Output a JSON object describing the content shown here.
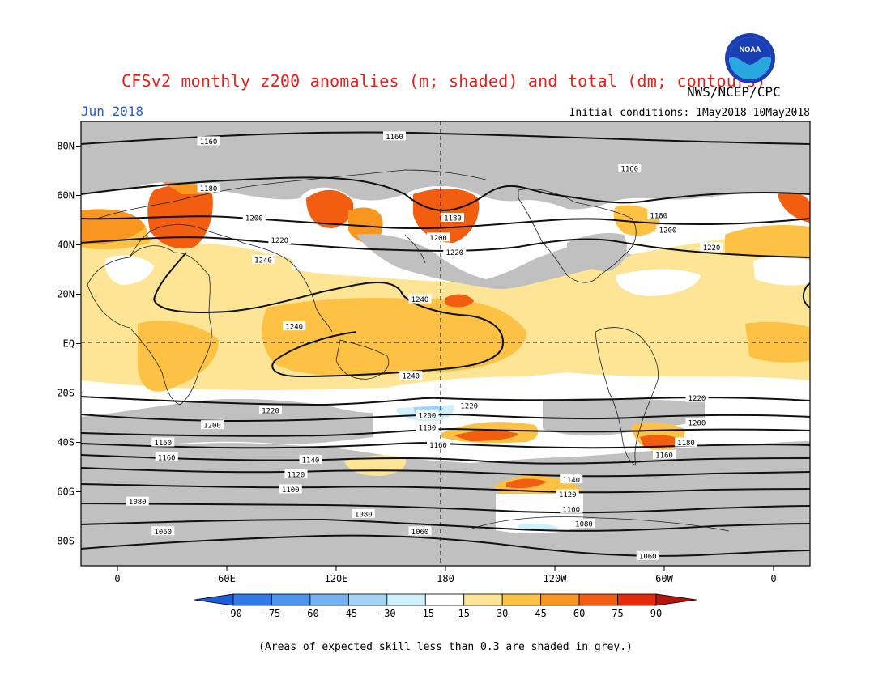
{
  "title": "CFSv2 monthly z200 anomalies (m; shaded) and total (dm; contours)",
  "month": "Jun 2018",
  "initial_conditions": "Initial conditions: 1May2018–10May2018",
  "agency": "NWS/NCEP/CPC",
  "logo": {
    "name": "noaa-logo",
    "text": "NOAA"
  },
  "footnote": "(Areas of expected skill less than 0.3 are shaded in grey.)",
  "axes": {
    "lat_labels": [
      "80N",
      "60N",
      "40N",
      "20N",
      "EQ",
      "20S",
      "40S",
      "60S",
      "80S"
    ],
    "lat_values": [
      80,
      60,
      40,
      20,
      0,
      -20,
      -40,
      -60,
      -80
    ],
    "lon_labels": [
      "0",
      "60E",
      "120E",
      "180",
      "120W",
      "60W",
      "0"
    ],
    "lon_values": [
      0,
      60,
      120,
      180,
      240,
      300,
      360
    ]
  },
  "colorbar": {
    "labels": [
      "-90",
      "-75",
      "-60",
      "-45",
      "-30",
      "-15",
      "15",
      "30",
      "45",
      "60",
      "75",
      "90"
    ],
    "colors": [
      "#1a5fd9",
      "#2f7ae8",
      "#4c95ee",
      "#73b2f3",
      "#a3d4f8",
      "#cdf0fb",
      "#ffffff",
      "#fde595",
      "#fdc144",
      "#f9961f",
      "#f25d10",
      "#e52a0a",
      "#b8140c"
    ]
  },
  "contour_labels": [
    {
      "text": "1160",
      "lon": 50,
      "lat": 82
    },
    {
      "text": "1160",
      "lon": 152,
      "lat": 84
    },
    {
      "text": "1160",
      "lon": 281,
      "lat": 71
    },
    {
      "text": "1180",
      "lon": 50,
      "lat": 63
    },
    {
      "text": "1180",
      "lon": 184,
      "lat": 51
    },
    {
      "text": "1180",
      "lon": 297,
      "lat": 52
    },
    {
      "text": "1200",
      "lon": 75,
      "lat": 51
    },
    {
      "text": "1200",
      "lon": 176,
      "lat": 43
    },
    {
      "text": "1200",
      "lon": 302,
      "lat": 46
    },
    {
      "text": "1220",
      "lon": 89,
      "lat": 42
    },
    {
      "text": "1220",
      "lon": 185,
      "lat": 37
    },
    {
      "text": "1220",
      "lon": 326,
      "lat": 39
    },
    {
      "text": "1240",
      "lon": 80,
      "lat": 34
    },
    {
      "text": "1240",
      "lon": 166,
      "lat": 18
    },
    {
      "text": "1240",
      "lon": 97,
      "lat": 7
    },
    {
      "text": "1240",
      "lon": 161,
      "lat": -13
    },
    {
      "text": "1220",
      "lon": 84,
      "lat": -27
    },
    {
      "text": "1220",
      "lon": 193,
      "lat": -25
    },
    {
      "text": "1220",
      "lon": 318,
      "lat": -22
    },
    {
      "text": "1200",
      "lon": 52,
      "lat": -33
    },
    {
      "text": "1200",
      "lon": 170,
      "lat": -29
    },
    {
      "text": "1200",
      "lon": 318,
      "lat": -32
    },
    {
      "text": "1180",
      "lon": 170,
      "lat": -34
    },
    {
      "text": "1180",
      "lon": 312,
      "lat": -40
    },
    {
      "text": "1160",
      "lon": 25,
      "lat": -40
    },
    {
      "text": "1160",
      "lon": 176,
      "lat": -41
    },
    {
      "text": "1160",
      "lon": 300,
      "lat": -45
    },
    {
      "text": "1160",
      "lon": 27,
      "lat": -46
    },
    {
      "text": "1140",
      "lon": 106,
      "lat": -47
    },
    {
      "text": "1140",
      "lon": 249,
      "lat": -55
    },
    {
      "text": "1120",
      "lon": 98,
      "lat": -53
    },
    {
      "text": "1120",
      "lon": 247,
      "lat": -61
    },
    {
      "text": "1100",
      "lon": 95,
      "lat": -59
    },
    {
      "text": "1100",
      "lon": 249,
      "lat": -67
    },
    {
      "text": "1080",
      "lon": 11,
      "lat": -64
    },
    {
      "text": "1080",
      "lon": 135,
      "lat": -69
    },
    {
      "text": "1080",
      "lon": 256,
      "lat": -73
    },
    {
      "text": "1060",
      "lon": 25,
      "lat": -76
    },
    {
      "text": "1060",
      "lon": 166,
      "lat": -76
    },
    {
      "text": "1060",
      "lon": 291,
      "lat": -86
    }
  ]
}
